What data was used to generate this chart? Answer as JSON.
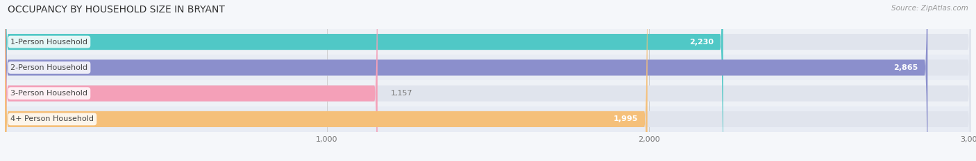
{
  "title": "OCCUPANCY BY HOUSEHOLD SIZE IN BRYANT",
  "source": "Source: ZipAtlas.com",
  "categories": [
    "1-Person Household",
    "2-Person Household",
    "3-Person Household",
    "4+ Person Household"
  ],
  "values": [
    2230,
    2865,
    1157,
    1995
  ],
  "bar_colors": [
    "#50c8c6",
    "#8b8fcc",
    "#f4a0b8",
    "#f5c07a"
  ],
  "row_bg_colors": [
    "#eef1f6",
    "#e8ecf4",
    "#eef1f6",
    "#e8ecf4"
  ],
  "full_bar_color": "#e0e4ed",
  "xlim": [
    0,
    3000
  ],
  "xticks": [
    1000,
    2000,
    3000
  ],
  "value_label_colors": [
    "white",
    "white",
    "#999999",
    "#999999"
  ],
  "bar_height": 0.62,
  "figsize": [
    14.06,
    2.33
  ],
  "dpi": 100,
  "background_color": "#f5f7fa",
  "grid_color": "#cccccc",
  "title_color": "#333333",
  "source_color": "#999999"
}
